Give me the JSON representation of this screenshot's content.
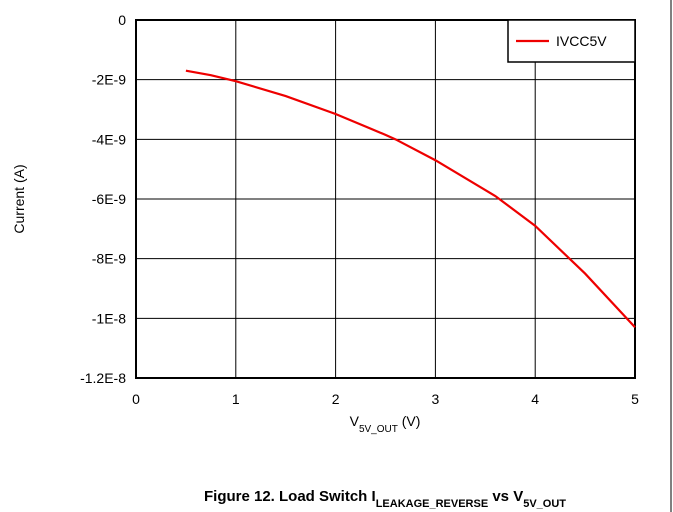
{
  "chart_data": {
    "type": "line",
    "x": [
      0.5,
      0.75,
      1,
      1.5,
      2,
      2.5,
      2.6,
      3,
      3.5,
      3.6,
      4,
      4.5,
      5
    ],
    "series": [
      {
        "name": "IVCC5V",
        "color": "#ee0000",
        "values": [
          -1.7e-09,
          -1.85e-09,
          -2.05e-09,
          -2.55e-09,
          -3.15e-09,
          -3.85e-09,
          -4e-09,
          -4.7e-09,
          -5.7e-09,
          -5.9e-09,
          -6.9e-09,
          -8.5e-09,
          -1.03e-08
        ]
      }
    ],
    "xlim": [
      0,
      5
    ],
    "xticks": [
      0,
      1,
      2,
      3,
      4,
      5
    ],
    "ylim": [
      -1.2e-08,
      0
    ],
    "yticks": [
      {
        "value": 0,
        "label": "0"
      },
      {
        "value": -2e-09,
        "label": "-2E-9"
      },
      {
        "value": -4e-09,
        "label": "-4E-9"
      },
      {
        "value": -6e-09,
        "label": "-6E-9"
      },
      {
        "value": -8e-09,
        "label": "-8E-9"
      },
      {
        "value": -1e-08,
        "label": "-1E-8"
      },
      {
        "value": -1.2e-08,
        "label": "-1.2E-8"
      }
    ],
    "ylabel": "Current (A)",
    "xlabel": [
      "V",
      "5V_OUT",
      " (V)"
    ],
    "caption": [
      "Figure 12. Load Switch I",
      "LEAKAGE_REVERSE",
      " vs V",
      "5V_OUT"
    ],
    "grid": true,
    "legend": "upper right"
  }
}
